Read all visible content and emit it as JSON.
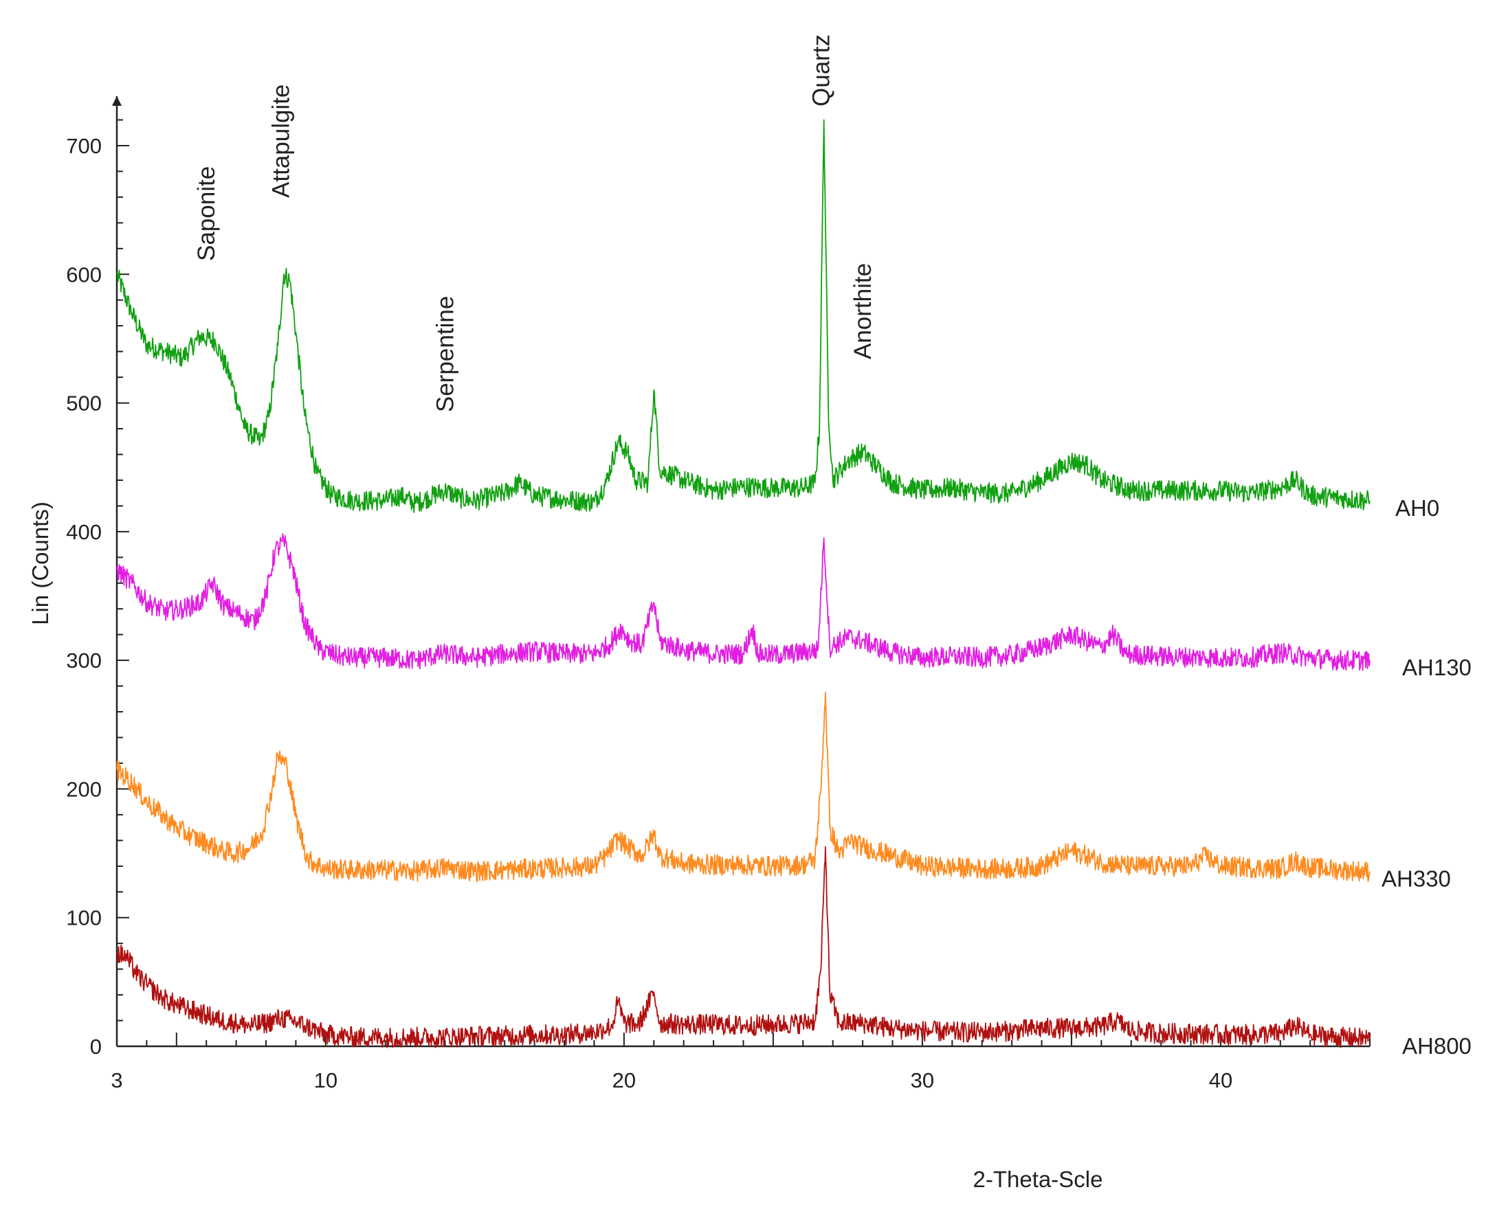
{
  "chart_data": {
    "type": "line",
    "title": "",
    "xlabel": "2-Theta-Scle",
    "ylabel": "Lin (Counts)",
    "xlim": [
      3,
      45
    ],
    "ylim": [
      0,
      720
    ],
    "x_ticks": [
      3,
      10,
      20,
      30,
      40
    ],
    "y_ticks": [
      0,
      100,
      200,
      300,
      400,
      500,
      600,
      700
    ],
    "grid": false,
    "legend": "inline labels at right end of each pattern",
    "annotations": [
      {
        "text": "Saponite",
        "x": 6.0
      },
      {
        "text": "Attapulgite",
        "x": 8.5
      },
      {
        "text": "Serpentine",
        "x": 14.0
      },
      {
        "text": "Quartz",
        "x": 26.6
      },
      {
        "text": "Anorthite",
        "x": 28.0
      }
    ],
    "series": [
      {
        "name": "AH0",
        "color": "#11a011",
        "points": [
          [
            3,
            600
          ],
          [
            3.5,
            570
          ],
          [
            4,
            545
          ],
          [
            4.6,
            540
          ],
          [
            5.2,
            535
          ],
          [
            5.8,
            552
          ],
          [
            6.3,
            548
          ],
          [
            6.8,
            520
          ],
          [
            7.3,
            480
          ],
          [
            7.8,
            470
          ],
          [
            8.1,
            490
          ],
          [
            8.4,
            545
          ],
          [
            8.6,
            600
          ],
          [
            8.8,
            595
          ],
          [
            9.0,
            555
          ],
          [
            9.3,
            490
          ],
          [
            9.7,
            445
          ],
          [
            10.2,
            428
          ],
          [
            11,
            424
          ],
          [
            12,
            424
          ],
          [
            12.5,
            428
          ],
          [
            13,
            422
          ],
          [
            14,
            432
          ],
          [
            14.5,
            426
          ],
          [
            15,
            424
          ],
          [
            16,
            430
          ],
          [
            16.5,
            438
          ],
          [
            17,
            428
          ],
          [
            18,
            425
          ],
          [
            19,
            423
          ],
          [
            19.4,
            438
          ],
          [
            19.8,
            470
          ],
          [
            20.1,
            462
          ],
          [
            20.4,
            440
          ],
          [
            20.8,
            438
          ],
          [
            21.0,
            510
          ],
          [
            21.2,
            448
          ],
          [
            22,
            440
          ],
          [
            23,
            432
          ],
          [
            24,
            435
          ],
          [
            25,
            434
          ],
          [
            26,
            434
          ],
          [
            26.4,
            438
          ],
          [
            26.55,
            480
          ],
          [
            26.7,
            720
          ],
          [
            26.85,
            495
          ],
          [
            27.0,
            440
          ],
          [
            27.5,
            455
          ],
          [
            28,
            462
          ],
          [
            28.5,
            450
          ],
          [
            29,
            438
          ],
          [
            30,
            432
          ],
          [
            31,
            434
          ],
          [
            32,
            430
          ],
          [
            33,
            430
          ],
          [
            34,
            440
          ],
          [
            35,
            455
          ],
          [
            35.5,
            452
          ],
          [
            36,
            440
          ],
          [
            37,
            432
          ],
          [
            38,
            432
          ],
          [
            39,
            432
          ],
          [
            40,
            432
          ],
          [
            41,
            430
          ],
          [
            42,
            434
          ],
          [
            42.5,
            440
          ],
          [
            43,
            428
          ],
          [
            44,
            426
          ],
          [
            45,
            424
          ]
        ]
      },
      {
        "name": "AH130",
        "color": "#e21ee2",
        "points": [
          [
            3,
            370
          ],
          [
            3.5,
            360
          ],
          [
            4,
            345
          ],
          [
            4.6,
            338
          ],
          [
            5.2,
            340
          ],
          [
            5.8,
            345
          ],
          [
            6.2,
            360
          ],
          [
            6.6,
            342
          ],
          [
            7.2,
            335
          ],
          [
            7.6,
            330
          ],
          [
            8.0,
            350
          ],
          [
            8.3,
            385
          ],
          [
            8.6,
            392
          ],
          [
            8.9,
            372
          ],
          [
            9.3,
            328
          ],
          [
            9.8,
            308
          ],
          [
            10.5,
            303
          ],
          [
            11,
            302
          ],
          [
            12,
            302
          ],
          [
            13,
            300
          ],
          [
            13.5,
            303
          ],
          [
            14,
            305
          ],
          [
            15,
            302
          ],
          [
            16,
            305
          ],
          [
            17,
            307
          ],
          [
            18,
            305
          ],
          [
            19,
            305
          ],
          [
            19.5,
            312
          ],
          [
            19.9,
            325
          ],
          [
            20.2,
            315
          ],
          [
            20.6,
            312
          ],
          [
            21.0,
            345
          ],
          [
            21.2,
            315
          ],
          [
            22,
            308
          ],
          [
            23,
            305
          ],
          [
            24,
            305
          ],
          [
            24.3,
            325
          ],
          [
            24.5,
            305
          ],
          [
            25,
            304
          ],
          [
            26,
            306
          ],
          [
            26.5,
            308
          ],
          [
            26.7,
            395
          ],
          [
            26.9,
            310
          ],
          [
            27.5,
            318
          ],
          [
            28,
            315
          ],
          [
            29,
            306
          ],
          [
            30,
            302
          ],
          [
            31,
            303
          ],
          [
            32,
            302
          ],
          [
            33,
            304
          ],
          [
            34,
            310
          ],
          [
            35,
            320
          ],
          [
            35.5,
            315
          ],
          [
            36,
            310
          ],
          [
            36.4,
            320
          ],
          [
            36.8,
            305
          ],
          [
            38,
            303
          ],
          [
            40,
            302
          ],
          [
            41,
            302
          ],
          [
            42,
            306
          ],
          [
            42.5,
            304
          ],
          [
            43,
            302
          ],
          [
            44,
            300
          ],
          [
            45,
            300
          ]
        ]
      },
      {
        "name": "AH330",
        "color": "#ff8a1e",
        "points": [
          [
            3,
            215
          ],
          [
            3.5,
            205
          ],
          [
            4,
            190
          ],
          [
            4.5,
            180
          ],
          [
            5,
            170
          ],
          [
            5.5,
            163
          ],
          [
            6,
            158
          ],
          [
            6.5,
            152
          ],
          [
            7,
            150
          ],
          [
            7.5,
            155
          ],
          [
            7.9,
            168
          ],
          [
            8.2,
            200
          ],
          [
            8.4,
            226
          ],
          [
            8.7,
            218
          ],
          [
            9.0,
            178
          ],
          [
            9.4,
            145
          ],
          [
            10,
            138
          ],
          [
            11,
            137
          ],
          [
            12,
            137
          ],
          [
            13,
            136
          ],
          [
            14,
            139
          ],
          [
            15,
            136
          ],
          [
            16,
            137
          ],
          [
            17,
            138
          ],
          [
            18,
            139
          ],
          [
            19,
            140
          ],
          [
            19.4,
            148
          ],
          [
            19.8,
            162
          ],
          [
            20.1,
            155
          ],
          [
            20.6,
            148
          ],
          [
            21.0,
            165
          ],
          [
            21.2,
            148
          ],
          [
            22,
            142
          ],
          [
            23,
            141
          ],
          [
            24,
            141
          ],
          [
            25,
            140
          ],
          [
            26,
            141
          ],
          [
            26.4,
            145
          ],
          [
            26.6,
            200
          ],
          [
            26.75,
            275
          ],
          [
            26.9,
            170
          ],
          [
            27.2,
            150
          ],
          [
            27.6,
            160
          ],
          [
            28,
            155
          ],
          [
            29,
            148
          ],
          [
            30,
            140
          ],
          [
            31,
            139
          ],
          [
            32,
            138
          ],
          [
            33,
            138
          ],
          [
            34,
            140
          ],
          [
            35,
            152
          ],
          [
            35.5,
            148
          ],
          [
            36,
            143
          ],
          [
            37,
            140
          ],
          [
            38,
            140
          ],
          [
            39,
            140
          ],
          [
            39.5,
            148
          ],
          [
            40,
            140
          ],
          [
            41,
            139
          ],
          [
            42,
            138
          ],
          [
            42.5,
            144
          ],
          [
            43,
            139
          ],
          [
            44,
            137
          ],
          [
            45,
            136
          ]
        ]
      },
      {
        "name": "AH800",
        "color": "#b01010",
        "points": [
          [
            3,
            72
          ],
          [
            3.3,
            70
          ],
          [
            3.7,
            55
          ],
          [
            4,
            48
          ],
          [
            4.5,
            38
          ],
          [
            5,
            32
          ],
          [
            5.5,
            28
          ],
          [
            6,
            24
          ],
          [
            6.5,
            20
          ],
          [
            7,
            18
          ],
          [
            7.5,
            16
          ],
          [
            8,
            18
          ],
          [
            8.5,
            22
          ],
          [
            8.9,
            20
          ],
          [
            9.3,
            16
          ],
          [
            10,
            9
          ],
          [
            11,
            7
          ],
          [
            12,
            7
          ],
          [
            13,
            7
          ],
          [
            14,
            7
          ],
          [
            15,
            8
          ],
          [
            16,
            8
          ],
          [
            17,
            9
          ],
          [
            18,
            9
          ],
          [
            19,
            11
          ],
          [
            19.6,
            16
          ],
          [
            19.8,
            35
          ],
          [
            20,
            18
          ],
          [
            20.5,
            17
          ],
          [
            21.0,
            42
          ],
          [
            21.2,
            18
          ],
          [
            22,
            17
          ],
          [
            23,
            17
          ],
          [
            24,
            16
          ],
          [
            25,
            17
          ],
          [
            26,
            18
          ],
          [
            26.4,
            20
          ],
          [
            26.6,
            60
          ],
          [
            26.75,
            155
          ],
          [
            26.9,
            40
          ],
          [
            27.2,
            18
          ],
          [
            28,
            18
          ],
          [
            29,
            14
          ],
          [
            30,
            12
          ],
          [
            31,
            11
          ],
          [
            32,
            11
          ],
          [
            33,
            12
          ],
          [
            34,
            14
          ],
          [
            35,
            14
          ],
          [
            36,
            15
          ],
          [
            36.5,
            20
          ],
          [
            37,
            12
          ],
          [
            38,
            10
          ],
          [
            39,
            10
          ],
          [
            40,
            9
          ],
          [
            41,
            9
          ],
          [
            42,
            10
          ],
          [
            42.5,
            16
          ],
          [
            43,
            9
          ],
          [
            44,
            7
          ],
          [
            45,
            6
          ]
        ]
      }
    ]
  }
}
